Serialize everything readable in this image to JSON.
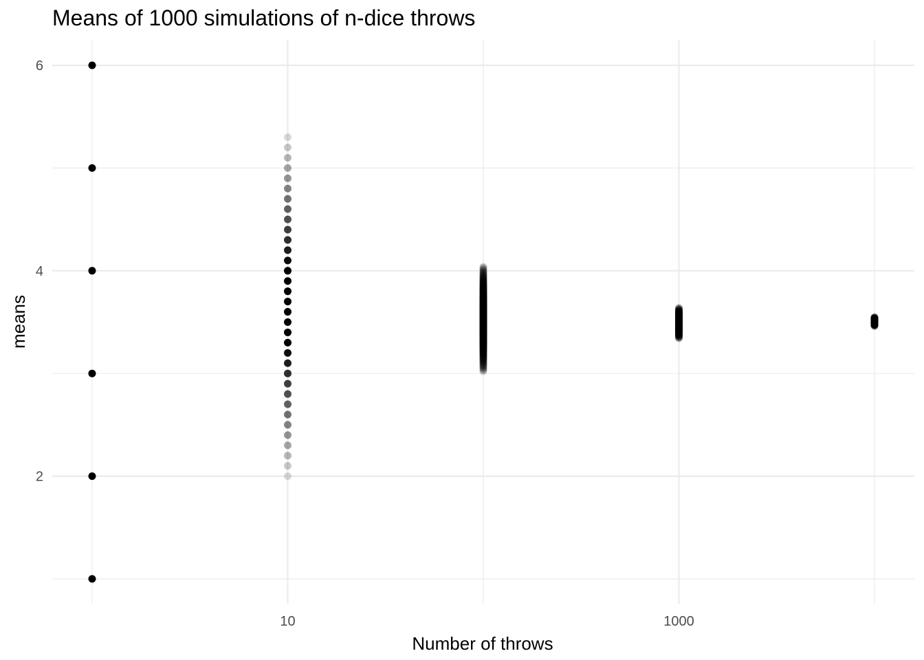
{
  "chart_data": {
    "type": "scatter",
    "title": "Means of 1000 simulations of n-dice throws",
    "xlabel": "Number of throws",
    "ylabel": "means",
    "x_scale": "log10",
    "x_ticks": [
      1,
      10,
      100,
      1000,
      10000
    ],
    "x_tick_labels": [
      "",
      "10",
      "",
      "1000",
      ""
    ],
    "y_ticks": [
      1,
      2,
      3,
      4,
      5,
      6
    ],
    "y_tick_labels": [
      "",
      "2",
      "",
      "4",
      "",
      "6"
    ],
    "xlim": [
      1,
      10000
    ],
    "ylim": [
      1,
      6
    ],
    "grid": true,
    "point_color": "#000000",
    "point_alpha": 0.15,
    "groups": [
      {
        "x": 1,
        "min": 1,
        "max": 6,
        "step": 1
      },
      {
        "x": 10,
        "min": 2.0,
        "max": 5.3,
        "step": 0.1
      },
      {
        "x": 100,
        "min": 3.02,
        "max": 4.04,
        "step": 0.01
      },
      {
        "x": 1000,
        "min": 3.34,
        "max": 3.64,
        "step": 0.005
      },
      {
        "x": 10000,
        "min": 3.46,
        "max": 3.55,
        "step": 0.003
      }
    ]
  }
}
